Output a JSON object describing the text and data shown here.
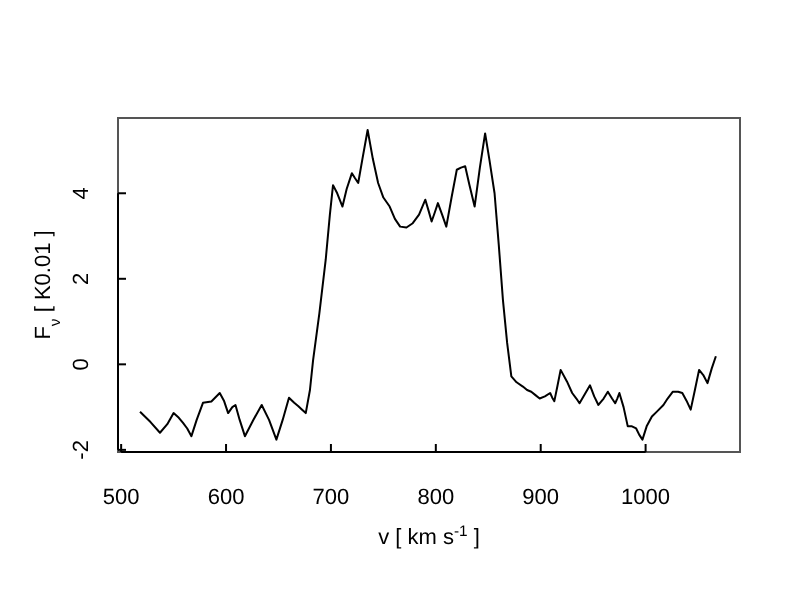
{
  "chart_data": {
    "type": "line",
    "xlabel": "v [ km s$^{-1}$ ]",
    "ylabel": "F$_{ν}$ [ K0.01 ]",
    "xlim": [
      497,
      1090
    ],
    "ylim": [
      -2.05,
      5.76
    ],
    "xticks": [
      500,
      600,
      700,
      800,
      900,
      1000
    ],
    "yticks": [
      -2,
      0,
      2,
      4
    ],
    "grid": false,
    "marker": "none",
    "line_style": "solid",
    "series": [
      {
        "color": "#000000",
        "x": [
          518,
          528,
          537,
          544,
          550,
          555,
          559,
          563,
          567,
          572,
          578,
          586,
          594,
          598,
          602,
          606,
          609,
          613,
          618,
          626,
          634,
          641,
          648,
          654,
          660,
          665,
          669,
          672,
          676,
          680,
          683,
          689,
          695,
          699,
          702,
          706,
          711,
          715,
          720,
          723,
          726,
          730,
          735,
          740,
          745,
          750,
          756,
          761,
          766,
          772,
          778,
          784,
          790,
          793,
          796,
          799,
          802,
          806,
          810,
          815,
          820,
          824,
          828,
          832,
          837,
          842,
          847,
          851,
          856,
          860,
          864,
          868,
          872,
          877,
          883,
          887,
          891,
          895,
          899,
          904,
          909,
          911,
          913,
          916,
          919,
          925,
          930,
          934,
          937,
          942,
          947,
          951,
          955,
          960,
          964,
          968,
          971,
          973,
          975,
          979,
          983,
          987,
          991,
          994,
          997,
          1001,
          1006,
          1011,
          1017,
          1021,
          1026,
          1031,
          1035,
          1039,
          1043,
          1047,
          1051,
          1055,
          1059,
          1063,
          1067
        ],
        "values": [
          -1.11,
          -1.35,
          -1.6,
          -1.4,
          -1.14,
          -1.25,
          -1.37,
          -1.5,
          -1.68,
          -1.3,
          -0.9,
          -0.87,
          -0.67,
          -0.85,
          -1.14,
          -1.0,
          -0.95,
          -1.3,
          -1.68,
          -1.3,
          -0.95,
          -1.3,
          -1.76,
          -1.3,
          -0.78,
          -0.9,
          -0.98,
          -1.05,
          -1.14,
          -0.6,
          0.1,
          1.2,
          2.44,
          3.5,
          4.19,
          4.0,
          3.69,
          4.1,
          4.47,
          4.35,
          4.24,
          4.8,
          5.48,
          4.8,
          4.24,
          3.9,
          3.69,
          3.4,
          3.22,
          3.2,
          3.3,
          3.5,
          3.85,
          3.6,
          3.34,
          3.55,
          3.77,
          3.5,
          3.22,
          3.9,
          4.55,
          4.6,
          4.63,
          4.2,
          3.69,
          4.6,
          5.4,
          4.8,
          4.0,
          2.8,
          1.5,
          0.5,
          -0.28,
          -0.42,
          -0.52,
          -0.6,
          -0.64,
          -0.72,
          -0.8,
          -0.75,
          -0.67,
          -0.78,
          -0.86,
          -0.5,
          -0.13,
          -0.4,
          -0.67,
          -0.8,
          -0.91,
          -0.7,
          -0.49,
          -0.75,
          -0.95,
          -0.8,
          -0.64,
          -0.8,
          -0.91,
          -0.8,
          -0.67,
          -1.0,
          -1.45,
          -1.45,
          -1.5,
          -1.65,
          -1.76,
          -1.45,
          -1.22,
          -1.1,
          -0.95,
          -0.8,
          -0.64,
          -0.64,
          -0.67,
          -0.85,
          -1.06,
          -0.6,
          -0.13,
          -0.25,
          -0.44,
          -0.1,
          0.19
        ]
      }
    ]
  }
}
